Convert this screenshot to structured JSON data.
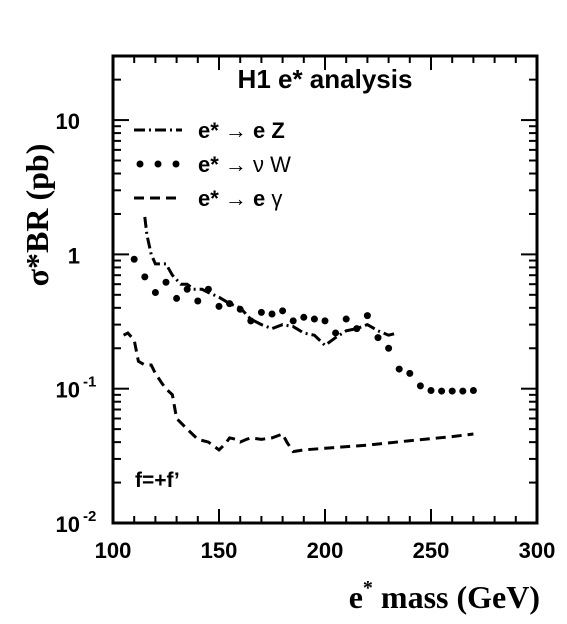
{
  "chart_data": {
    "type": "line",
    "title": "H1 e* analysis",
    "annotation": "f=+f’",
    "xlabel": "e* mass (GeV)",
    "ylabel": "σ*BR (pb)",
    "x_scale": "linear",
    "y_scale": "log",
    "xlim": [
      100,
      300
    ],
    "ylim": [
      0.01,
      30
    ],
    "x_ticks": [
      "100",
      "150",
      "200",
      "250",
      "300"
    ],
    "y_ticks": [
      {
        "value": 10,
        "label": "10",
        "exp": ""
      },
      {
        "value": 1,
        "label": "1",
        "exp": ""
      },
      {
        "value": 0.1,
        "label": "10",
        "exp": "-1"
      },
      {
        "value": 0.01,
        "label": "10",
        "exp": "-2"
      }
    ],
    "legend_placement": "top-left",
    "series": [
      {
        "name": "e* → e Z",
        "legend_parts": [
          "e* ",
          "→",
          " e Z"
        ],
        "style": "dash-dot",
        "x": [
          115,
          116,
          118,
          120,
          123,
          125,
          128,
          132,
          135,
          138,
          142,
          145,
          150,
          155,
          160,
          165,
          170,
          175,
          180,
          185,
          190,
          195,
          200,
          205,
          210,
          215,
          220,
          225,
          230,
          234
        ],
        "y": [
          1.9,
          1.4,
          1.0,
          0.85,
          0.85,
          0.85,
          0.7,
          0.6,
          0.6,
          0.55,
          0.55,
          0.52,
          0.48,
          0.43,
          0.4,
          0.33,
          0.3,
          0.28,
          0.3,
          0.29,
          0.26,
          0.25,
          0.21,
          0.24,
          0.27,
          0.28,
          0.3,
          0.27,
          0.25,
          0.26
        ]
      },
      {
        "name": "e* → ν W",
        "legend_parts": [
          "e* ",
          "→",
          " ν W"
        ],
        "style": "dotted",
        "x": [
          110,
          115,
          120,
          125,
          130,
          135,
          140,
          145,
          150,
          155,
          160,
          165,
          170,
          175,
          180,
          185,
          190,
          195,
          200,
          205,
          210,
          215,
          220,
          225,
          230,
          235,
          240,
          245,
          250,
          255,
          260,
          265,
          270
        ],
        "y": [
          0.92,
          0.68,
          0.52,
          0.62,
          0.47,
          0.55,
          0.45,
          0.55,
          0.41,
          0.43,
          0.39,
          0.32,
          0.37,
          0.36,
          0.38,
          0.32,
          0.34,
          0.33,
          0.32,
          0.26,
          0.33,
          0.28,
          0.35,
          0.24,
          0.2,
          0.14,
          0.13,
          0.105,
          0.097,
          0.096,
          0.096,
          0.096,
          0.097
        ]
      },
      {
        "name": "e* → e γ",
        "legend_parts": [
          "e* ",
          "→",
          " e ",
          "γ"
        ],
        "style": "dashed",
        "x": [
          105,
          107,
          110,
          112,
          115,
          118,
          120,
          123,
          125,
          128,
          130,
          135,
          140,
          145,
          150,
          153,
          155,
          158,
          160,
          163,
          165,
          170,
          175,
          180,
          182,
          185,
          190,
          200,
          220,
          240,
          260,
          270
        ],
        "y": [
          0.25,
          0.26,
          0.23,
          0.16,
          0.15,
          0.15,
          0.13,
          0.11,
          0.1,
          0.09,
          0.06,
          0.05,
          0.042,
          0.04,
          0.035,
          0.039,
          0.043,
          0.042,
          0.04,
          0.042,
          0.043,
          0.042,
          0.043,
          0.046,
          0.04,
          0.034,
          0.035,
          0.036,
          0.038,
          0.041,
          0.044,
          0.046
        ]
      }
    ]
  }
}
